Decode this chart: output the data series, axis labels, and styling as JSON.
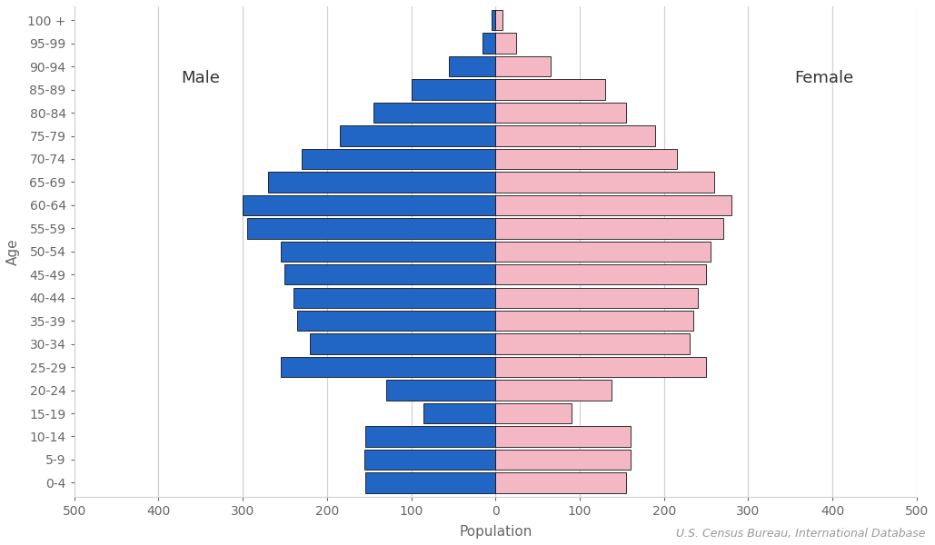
{
  "age_groups": [
    "0-4",
    "5-9",
    "10-14",
    "15-19",
    "20-24",
    "25-29",
    "30-34",
    "35-39",
    "40-44",
    "45-49",
    "50-54",
    "55-59",
    "60-64",
    "65-69",
    "70-74",
    "75-79",
    "80-84",
    "85-89",
    "90-94",
    "95-99",
    "100 +"
  ],
  "male": [
    155,
    156,
    155,
    85,
    130,
    255,
    220,
    235,
    240,
    250,
    255,
    295,
    300,
    270,
    230,
    185,
    145,
    100,
    55,
    15,
    5
  ],
  "female": [
    155,
    160,
    160,
    90,
    138,
    250,
    230,
    235,
    240,
    250,
    255,
    270,
    280,
    260,
    215,
    190,
    155,
    130,
    65,
    25,
    8
  ],
  "male_color": "#2166c4",
  "female_color": "#f4b8c4",
  "xlabel": "Population",
  "ylabel": "Age",
  "xlim": 500,
  "male_label": "Male",
  "female_label": "Female",
  "source": "U.S. Census Bureau, International Database",
  "bar_edgecolor": "#111111",
  "background_color": "#ffffff",
  "grid_color": "#d0d0d8",
  "label_color": "#666666",
  "tick_fontsize": 10,
  "axis_fontsize": 11,
  "source_fontsize": 9,
  "label_fontsize": 13
}
